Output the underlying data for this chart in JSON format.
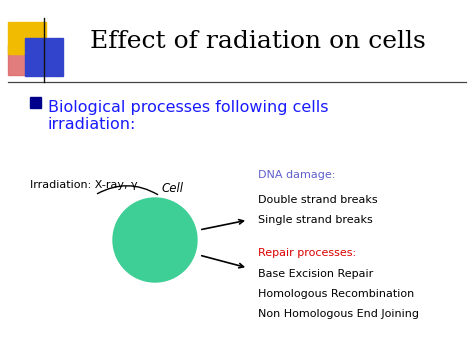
{
  "title": "Effect of radiation on cells",
  "title_fontsize": 18,
  "title_color": "#000000",
  "bg_color": "#ffffff",
  "bullet_color": "#1a1aff",
  "bullet_text_line1": "Biological processes following cells",
  "bullet_text_line2": "irradiation:",
  "bullet_fontsize": 11.5,
  "bullet_marker_color": "#00008b",
  "irradiation_label": "Irradiation: X-ray, γ",
  "irradiation_fontsize": 8,
  "cell_label": "Cell",
  "cell_label_fontsize": 8.5,
  "cell_circle_color": "#3ecf96",
  "dna_damage_label": "DNA damage:",
  "dna_damage_color": "#6060cc",
  "dna_damage_fontsize": 8,
  "dna_items": [
    "Double strand breaks",
    "Single strand breaks"
  ],
  "dna_items_fontsize": 8,
  "dna_items_color": "#000000",
  "repair_label": "Repair processes:",
  "repair_color": "#dd0000",
  "repair_fontsize": 8,
  "repair_items": [
    "Base Excision Repair",
    "Homologous Recombination",
    "Non Homologous End Joining"
  ],
  "repair_items_fontsize": 8,
  "repair_items_color": "#000000"
}
